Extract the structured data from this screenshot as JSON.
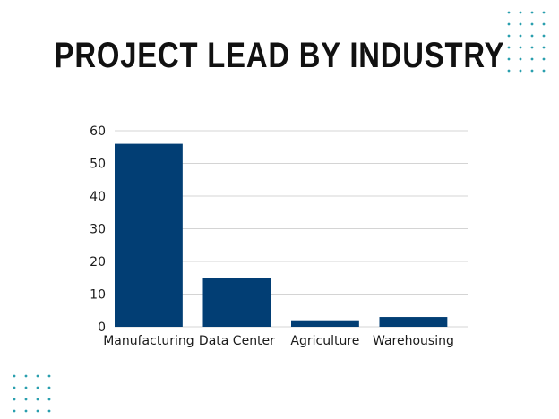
{
  "title": "PROJECT LEAD BY INDUSTRY",
  "colors": {
    "bar": "#023e74",
    "grid": "#d4d4d4",
    "dots": "#2a9fae"
  },
  "chart_data": {
    "type": "bar",
    "categories": [
      "Manufacturing",
      "Data Center",
      "Agriculture",
      "Warehousing"
    ],
    "values": [
      56,
      15,
      2,
      3
    ],
    "title": "PROJECT LEAD BY INDUSTRY",
    "xlabel": "",
    "ylabel": "",
    "ylim": [
      0,
      60
    ],
    "yticks": [
      0,
      10,
      20,
      30,
      40,
      50,
      60
    ],
    "grid": true,
    "legend": "none"
  }
}
